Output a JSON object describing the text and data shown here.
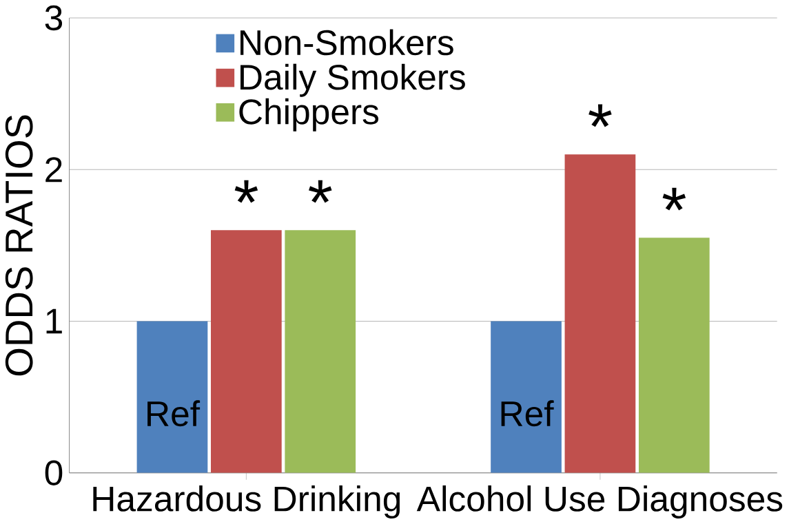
{
  "chart_data": {
    "type": "bar",
    "ylabel": "ODDS RATIOS",
    "categories": [
      "Hazardous Drinking",
      "Alcohol Use Diagnoses"
    ],
    "series": [
      {
        "name": "Non-Smokers",
        "color": "#4f81bd",
        "values": [
          1.0,
          1.0
        ],
        "value_labels": [
          "Ref",
          "Ref"
        ]
      },
      {
        "name": "Daily Smokers",
        "color": "#c0504d",
        "values": [
          1.6,
          2.1
        ],
        "value_labels": [
          "*",
          "*"
        ]
      },
      {
        "name": "Chippers",
        "color": "#9bbb59",
        "values": [
          1.6,
          1.55
        ],
        "value_labels": [
          "*",
          "*"
        ]
      }
    ],
    "ylim": [
      0,
      3
    ],
    "yticks": [
      0,
      1,
      2,
      3
    ],
    "grid": "y",
    "legend": "top left"
  }
}
